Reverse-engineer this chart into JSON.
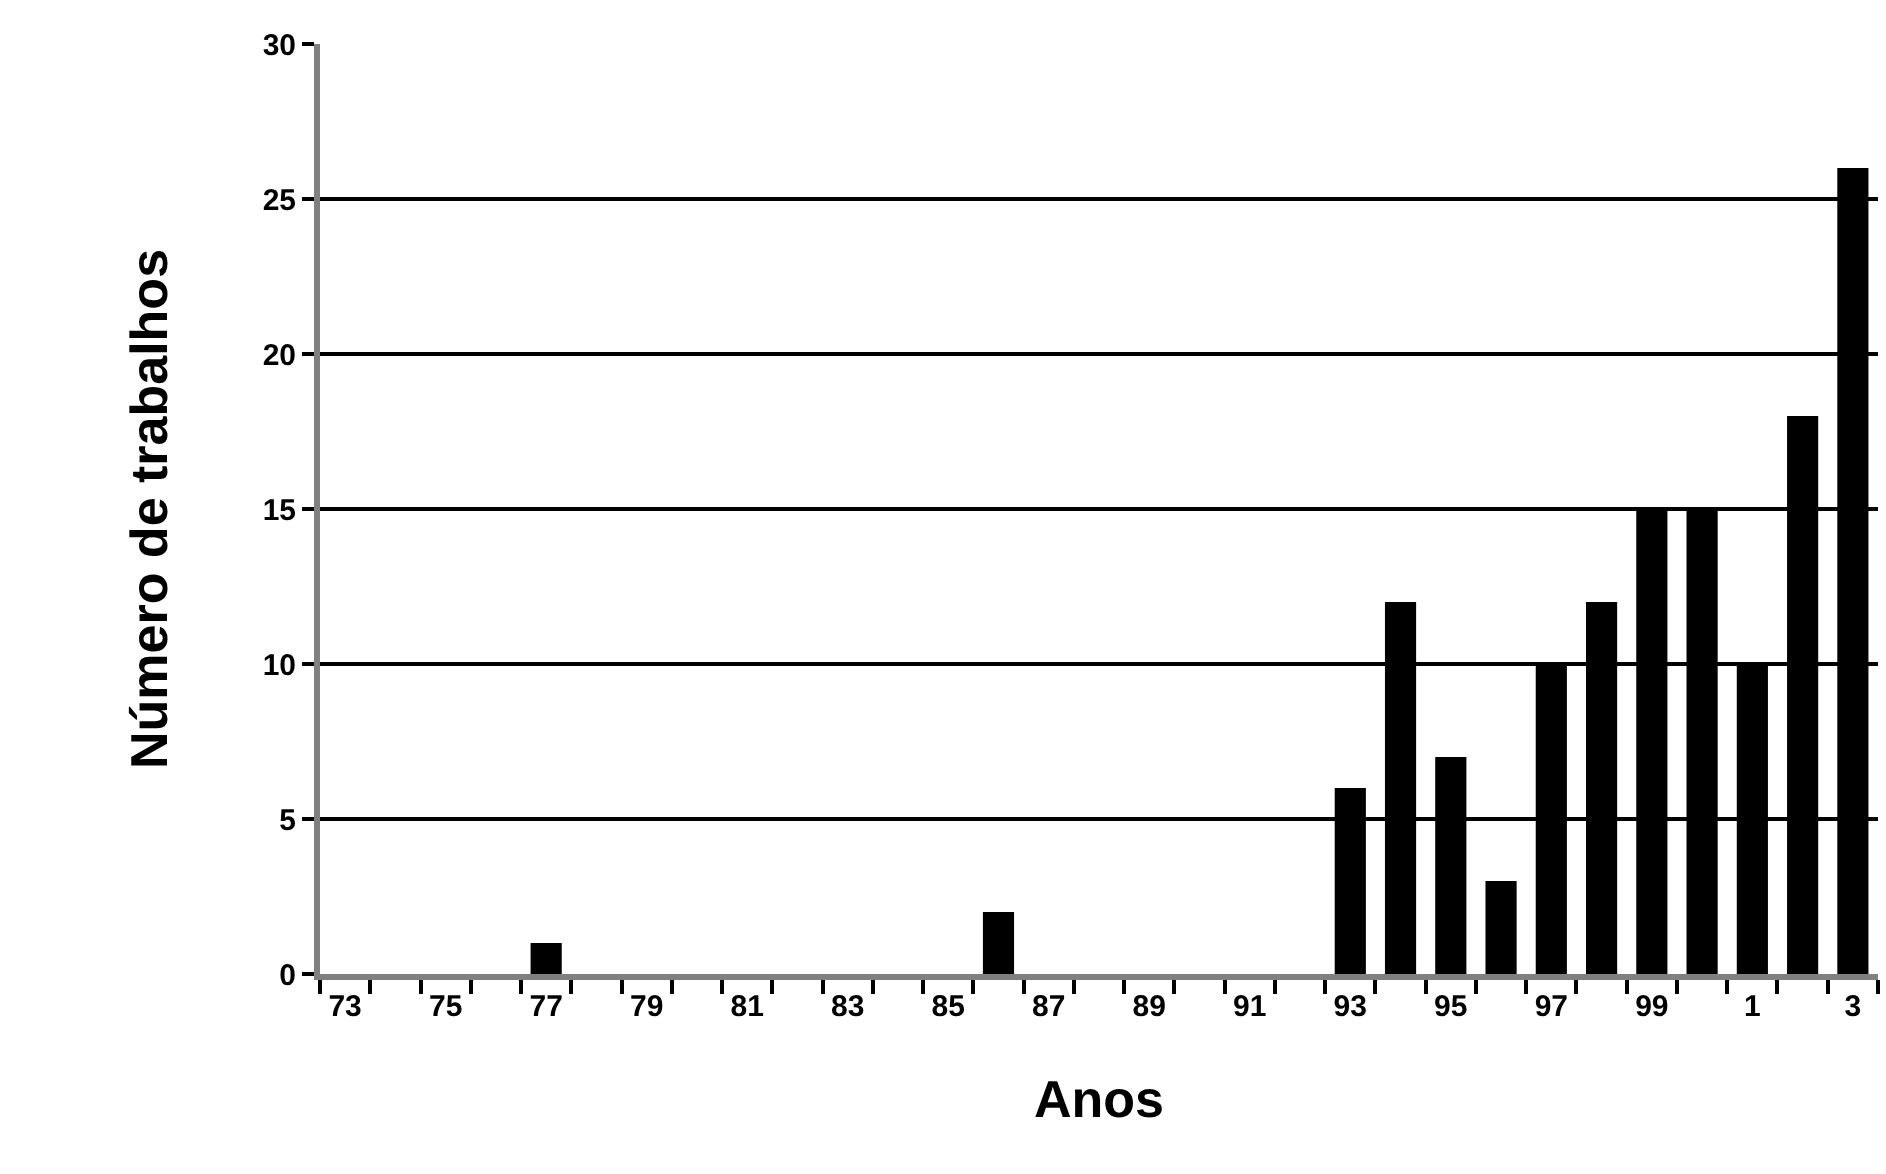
{
  "chart_data": {
    "type": "bar",
    "xlabel": "Anos",
    "ylabel": "Número de trabalhos",
    "categories": [
      "73",
      null,
      "75",
      null,
      "77",
      null,
      "79",
      null,
      "81",
      null,
      "83",
      null,
      "85",
      null,
      "87",
      null,
      "89",
      null,
      "91",
      null,
      "93",
      null,
      "95",
      null,
      "97",
      null,
      "99",
      null,
      "1",
      null,
      "3"
    ],
    "values": [
      0,
      0,
      0,
      0,
      1,
      0,
      0,
      0,
      0,
      0,
      0,
      0,
      0,
      2,
      0,
      0,
      0,
      0,
      0,
      0,
      6,
      12,
      7,
      3,
      10,
      12,
      15,
      15,
      10,
      18,
      26
    ],
    "color": "#000000",
    "ylim": [
      0,
      30
    ],
    "yticks": [
      0,
      5,
      10,
      15,
      20,
      25,
      30
    ],
    "grid": "y"
  }
}
